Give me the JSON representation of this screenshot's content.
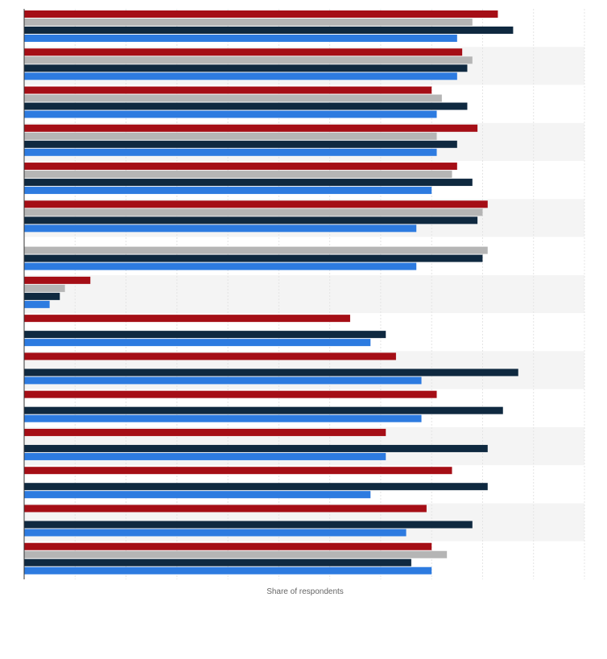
{
  "chart_data": {
    "type": "bar",
    "orientation": "horizontal",
    "title": "",
    "xlabel": "Share of respondents",
    "ylabel": "",
    "xlim": [
      0,
      110
    ],
    "grid": true,
    "legend": "none",
    "categories": [
      "",
      "",
      "",
      "",
      "",
      "",
      "",
      "",
      "",
      "",
      "",
      "",
      "",
      "",
      ""
    ],
    "series": [
      {
        "color": "#a50e16",
        "values": [
          93,
          86,
          80,
          89,
          85,
          91,
          null,
          13,
          64,
          73,
          81,
          71,
          84,
          79,
          80
        ]
      },
      {
        "color": "#b5b5b5",
        "values": [
          88,
          88,
          82,
          81,
          84,
          90,
          91,
          8,
          null,
          null,
          null,
          null,
          null,
          null,
          83
        ]
      },
      {
        "color": "#0f2940",
        "values": [
          96,
          87,
          87,
          85,
          88,
          89,
          90,
          7,
          71,
          97,
          94,
          91,
          91,
          88,
          76
        ]
      },
      {
        "color": "#2d7be0",
        "values": [
          85,
          85,
          81,
          81,
          80,
          77,
          77,
          5,
          68,
          78,
          78,
          71,
          68,
          75,
          80
        ]
      }
    ]
  }
}
